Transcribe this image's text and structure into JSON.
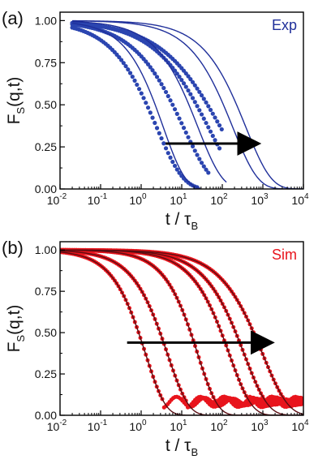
{
  "colors": {
    "exp": "#1f2f9a",
    "exp_points": "#2b45b0",
    "sim": "#e8141c",
    "sim_fit": "#5a0d12",
    "arrow": "#000000"
  },
  "chart_data": [
    {
      "type": "scatter",
      "panel_label": "(a)",
      "legend": "Exp",
      "legend_position": "top-right",
      "xlabel_main": "t / τ",
      "xlabel_sub": "B",
      "ylabel_main": "F",
      "ylabel_sub": "S",
      "ylabel_tail": "(q,t)",
      "x_scale": "log",
      "xlim": [
        0.01,
        10000
      ],
      "ylim": [
        0,
        1.05
      ],
      "x_ticks": [
        "10-2",
        "10-1",
        "100",
        "101",
        "102",
        "103",
        "104"
      ],
      "x_tick_bases": [
        "10",
        "10",
        "10",
        "10",
        "10",
        "10",
        "10"
      ],
      "x_tick_exps": [
        "-2",
        "-1",
        "0",
        "1",
        "2",
        "3",
        "4"
      ],
      "y_ticks": [
        "0.00",
        "0.25",
        "0.50",
        "0.75",
        "1.00"
      ],
      "arrow": {
        "from": [
          4,
          0.27
        ],
        "to": [
          700,
          0.27
        ]
      },
      "series": [
        {
          "role": "data",
          "tau": 2.4,
          "beta": 0.66,
          "x_range": [
            0.02,
            25
          ]
        },
        {
          "role": "data",
          "tau": 11,
          "beta": 0.6,
          "x_range": [
            0.02,
            50
          ]
        },
        {
          "role": "data",
          "tau": 45,
          "beta": 0.55,
          "x_range": [
            0.02,
            90
          ]
        },
        {
          "role": "data",
          "tau": 90,
          "beta": 0.5,
          "x_range": [
            0.02,
            100
          ]
        },
        {
          "role": "fit",
          "tau": 3.5,
          "beta": 0.8,
          "x_range": [
            0.02,
            30
          ]
        },
        {
          "role": "fit",
          "tau": 25,
          "beta": 0.72,
          "x_range": [
            0.02,
            130
          ]
        },
        {
          "role": "fit",
          "tau": 180,
          "beta": 0.7,
          "x_range": [
            0.02,
            10000
          ]
        },
        {
          "role": "fit",
          "tau": 380,
          "beta": 0.7,
          "x_range": [
            0.02,
            10000
          ]
        }
      ]
    },
    {
      "type": "scatter",
      "panel_label": "(b)",
      "legend": "Sim",
      "legend_position": "top-right",
      "xlabel_main": "t / τ",
      "xlabel_sub": "B",
      "ylabel_main": "F",
      "ylabel_sub": "S",
      "ylabel_tail": "(q,t)",
      "x_scale": "log",
      "xlim": [
        0.01,
        10000
      ],
      "ylim": [
        0,
        1.05
      ],
      "x_ticks": [
        "10-2",
        "10-1",
        "100",
        "101",
        "102",
        "103",
        "104"
      ],
      "x_tick_bases": [
        "10",
        "10",
        "10",
        "10",
        "10",
        "10",
        "10"
      ],
      "x_tick_exps": [
        "-2",
        "-1",
        "0",
        "1",
        "2",
        "3",
        "4"
      ],
      "y_ticks": [
        "0.00",
        "0.25",
        "0.50",
        "0.75",
        "1.00"
      ],
      "arrow": {
        "from": [
          0.45,
          0.44
        ],
        "to": [
          1500,
          0.44
        ]
      },
      "series": [
        {
          "role": "data",
          "tau": 1.3,
          "beta": 0.9,
          "x_range": [
            0.01,
            10000
          ]
        },
        {
          "role": "data",
          "tau": 4.5,
          "beta": 0.85,
          "x_range": [
            0.01,
            10000
          ]
        },
        {
          "role": "data",
          "tau": 25,
          "beta": 0.9,
          "x_range": [
            0.01,
            10000
          ]
        },
        {
          "role": "data",
          "tau": 150,
          "beta": 0.8,
          "x_range": [
            0.01,
            10000
          ]
        },
        {
          "role": "data",
          "tau": 350,
          "beta": 0.75,
          "x_range": [
            0.01,
            10000
          ]
        },
        {
          "role": "data",
          "tau": 1000,
          "beta": 0.7,
          "x_range": [
            0.01,
            10000
          ]
        },
        {
          "role": "fit",
          "tau": 1.3,
          "beta": 0.9,
          "x_range": [
            0.01,
            10000
          ]
        },
        {
          "role": "fit",
          "tau": 4.5,
          "beta": 0.85,
          "x_range": [
            0.01,
            10000
          ]
        },
        {
          "role": "fit",
          "tau": 25,
          "beta": 0.9,
          "x_range": [
            0.01,
            10000
          ]
        },
        {
          "role": "fit",
          "tau": 150,
          "beta": 0.8,
          "x_range": [
            0.01,
            10000
          ]
        },
        {
          "role": "fit",
          "tau": 350,
          "beta": 0.75,
          "x_range": [
            0.01,
            10000
          ]
        },
        {
          "role": "fit",
          "tau": 1000,
          "beta": 0.7,
          "x_range": [
            0.01,
            10000
          ]
        }
      ]
    }
  ]
}
